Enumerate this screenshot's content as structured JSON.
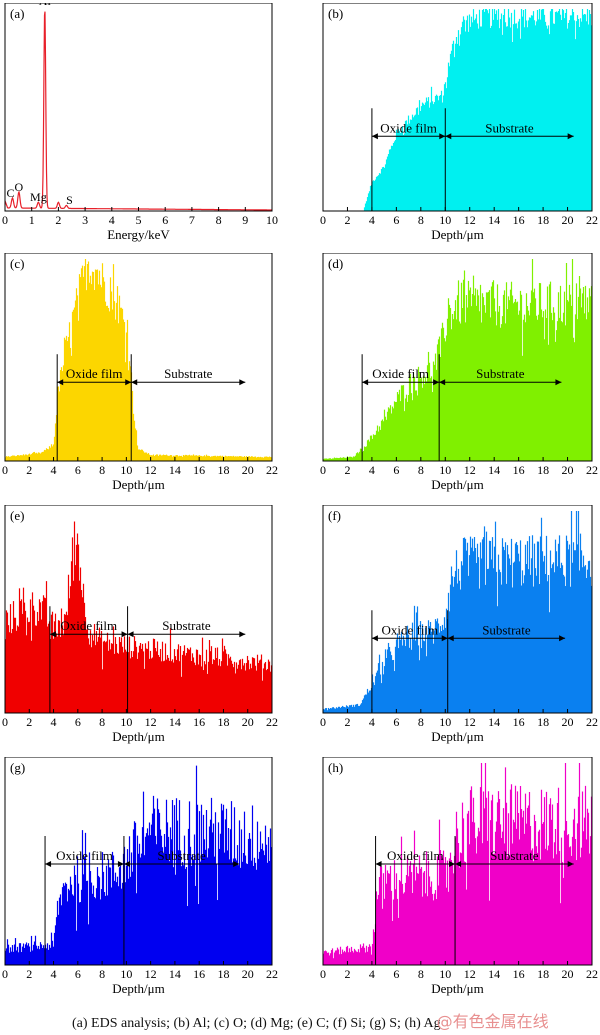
{
  "chart_data": [
    {
      "id": "a",
      "type": "line",
      "panel_label": "(a)",
      "xlabel": "Energy/keV",
      "xlim": [
        0,
        10
      ],
      "xticks": [
        0,
        1,
        2,
        3,
        4,
        5,
        6,
        7,
        8,
        9,
        10
      ],
      "ylim": [
        0,
        100
      ],
      "color": "#e8202a",
      "peaks": [
        {
          "label": "C",
          "energy": 0.28,
          "intensity": 5
        },
        {
          "label": "O",
          "energy": 0.52,
          "intensity": 8
        },
        {
          "label": "Mg",
          "energy": 1.25,
          "intensity": 3
        },
        {
          "label": "Al",
          "energy": 1.49,
          "intensity": 100
        },
        {
          "label": "",
          "energy": 2.0,
          "intensity": 3
        },
        {
          "label": "S",
          "energy": 2.3,
          "intensity": 1.5
        }
      ],
      "background": [
        {
          "x": 0,
          "y": 5
        },
        {
          "x": 0.1,
          "y": 1.5
        },
        {
          "x": 10,
          "y": 0.5
        }
      ]
    },
    {
      "id": "b",
      "type": "bar",
      "panel_label": "(b)",
      "element": "Al",
      "xlabel": "Depth/μm",
      "xlim": [
        0,
        22
      ],
      "xticks": [
        0,
        2,
        4,
        6,
        8,
        10,
        12,
        14,
        16,
        18,
        20,
        22
      ],
      "ylim": [
        0,
        100
      ],
      "color": "#00f0f0",
      "noise": 0.06,
      "profile": [
        [
          0,
          0
        ],
        [
          3.3,
          0
        ],
        [
          3.6,
          6
        ],
        [
          4,
          14
        ],
        [
          5,
          22
        ],
        [
          6,
          38
        ],
        [
          7,
          45
        ],
        [
          8,
          52
        ],
        [
          9,
          55
        ],
        [
          9.8,
          57
        ],
        [
          10.3,
          72
        ],
        [
          10.8,
          85
        ],
        [
          11.5,
          93
        ],
        [
          13,
          96
        ],
        [
          22,
          96
        ]
      ],
      "oxide_film": [
        4,
        10
      ],
      "annotation_level": 37,
      "labels": {
        "oxide": "Oxide film",
        "substrate": "Substrate"
      },
      "substrate_end": 20.5
    },
    {
      "id": "c",
      "type": "bar",
      "panel_label": "(c)",
      "element": "O",
      "xlabel": "Depth/μm",
      "xlim": [
        0,
        22
      ],
      "xticks": [
        0,
        2,
        4,
        6,
        8,
        10,
        12,
        14,
        16,
        18,
        20,
        22
      ],
      "ylim": [
        0,
        100
      ],
      "color": "#fcd600",
      "noise": 0.12,
      "profile": [
        [
          0,
          2
        ],
        [
          3,
          4
        ],
        [
          4,
          8
        ],
        [
          4.4,
          35
        ],
        [
          5,
          55
        ],
        [
          6,
          80
        ],
        [
          6.8,
          98
        ],
        [
          7.5,
          95
        ],
        [
          8.5,
          85
        ],
        [
          9.5,
          75
        ],
        [
          10.2,
          60
        ],
        [
          10.6,
          25
        ],
        [
          11,
          6
        ],
        [
          12,
          3
        ],
        [
          22,
          2
        ]
      ],
      "oxide_film": [
        4.3,
        10.4
      ],
      "annotation_level": 39,
      "labels": {
        "oxide": "Oxide film",
        "substrate": "Substrate"
      },
      "substrate_end": 19.8
    },
    {
      "id": "d",
      "type": "bar",
      "panel_label": "(d)",
      "element": "Mg",
      "xlabel": "Depth/μm",
      "xlim": [
        0,
        22
      ],
      "xticks": [
        0,
        2,
        4,
        6,
        8,
        10,
        12,
        14,
        16,
        18,
        20,
        22
      ],
      "ylim": [
        0,
        100
      ],
      "color": "#80f000",
      "noise": 0.15,
      "profile": [
        [
          0,
          1
        ],
        [
          2.5,
          2
        ],
        [
          3.5,
          8
        ],
        [
          5,
          20
        ],
        [
          6,
          30
        ],
        [
          7,
          38
        ],
        [
          8,
          42
        ],
        [
          9,
          45
        ],
        [
          9.6,
          55
        ],
        [
          10.2,
          72
        ],
        [
          11,
          78
        ],
        [
          13,
          77
        ],
        [
          22,
          78
        ]
      ],
      "oxide_film": [
        3.2,
        9.5
      ],
      "annotation_level": 39,
      "labels": {
        "oxide": "Oxide film",
        "substrate": "Substrate"
      },
      "substrate_end": 19.5
    },
    {
      "id": "e",
      "type": "bar",
      "panel_label": "(e)",
      "element": "C",
      "xlabel": "Depth/μm",
      "xlim": [
        0,
        22
      ],
      "xticks": [
        0,
        2,
        4,
        6,
        8,
        10,
        12,
        14,
        16,
        18,
        20,
        22
      ],
      "ylim": [
        0,
        100
      ],
      "color": "#f00000",
      "noise": 0.18,
      "profile": [
        [
          0,
          45
        ],
        [
          2,
          52
        ],
        [
          3,
          52
        ],
        [
          4,
          42
        ],
        [
          5,
          45
        ],
        [
          5.5,
          75
        ],
        [
          6,
          86
        ],
        [
          6.5,
          55
        ],
        [
          7,
          40
        ],
        [
          8,
          35
        ],
        [
          10,
          33
        ],
        [
          14,
          30
        ],
        [
          22,
          24
        ]
      ],
      "oxide_film": [
        3.7,
        10.1
      ],
      "annotation_level": 39,
      "labels": {
        "oxide": "Oxide film",
        "substrate": "Substrate"
      },
      "substrate_end": 19.8
    },
    {
      "id": "f",
      "type": "bar",
      "panel_label": "(f)",
      "element": "Si",
      "xlabel": "Depth/μm",
      "xlim": [
        0,
        22
      ],
      "xticks": [
        0,
        2,
        4,
        6,
        8,
        10,
        12,
        14,
        16,
        18,
        20,
        22
      ],
      "ylim": [
        0,
        100
      ],
      "color": "#0a80f0",
      "noise": 0.18,
      "profile": [
        [
          0,
          2
        ],
        [
          3,
          4
        ],
        [
          4,
          14
        ],
        [
          5,
          25
        ],
        [
          6,
          32
        ],
        [
          7,
          38
        ],
        [
          9,
          40
        ],
        [
          10,
          48
        ],
        [
          10.6,
          68
        ],
        [
          11.5,
          74
        ],
        [
          22,
          76
        ]
      ],
      "oxide_film": [
        4,
        10.2
      ],
      "annotation_level": 37,
      "labels": {
        "oxide": "Oxide film",
        "substrate": "Substrate"
      },
      "substrate_end": 19.8
    },
    {
      "id": "g",
      "type": "bar",
      "panel_label": "(g)",
      "element": "S",
      "xlabel": "Depth/μm",
      "xlim": [
        0,
        22
      ],
      "xticks": [
        0,
        2,
        4,
        6,
        8,
        10,
        12,
        14,
        16,
        18,
        20,
        22
      ],
      "ylim": [
        0,
        100
      ],
      "color": "#0000f0",
      "noise": 0.28,
      "profile": [
        [
          0,
          8
        ],
        [
          4,
          10
        ],
        [
          4.6,
          35
        ],
        [
          5.5,
          42
        ],
        [
          9,
          45
        ],
        [
          10.5,
          55
        ],
        [
          12,
          66
        ],
        [
          16,
          66
        ],
        [
          22,
          62
        ]
      ],
      "oxide_film": [
        3.3,
        9.8
      ],
      "annotation_level": 50,
      "labels": {
        "oxide": "Oxide film",
        "substrate": "Substrate"
      },
      "substrate_end": 19.3
    },
    {
      "id": "h",
      "type": "bar",
      "panel_label": "(h)",
      "element": "Ag",
      "xlabel": "Depth/μm",
      "xlim": [
        0,
        22
      ],
      "xticks": [
        0,
        2,
        4,
        6,
        8,
        10,
        12,
        14,
        16,
        18,
        20,
        22
      ],
      "ylim": [
        0,
        100
      ],
      "color": "#f000c8",
      "noise": 0.28,
      "profile": [
        [
          0,
          6
        ],
        [
          4,
          9
        ],
        [
          4.5,
          38
        ],
        [
          5.5,
          42
        ],
        [
          10,
          45
        ],
        [
          10.8,
          62
        ],
        [
          12,
          70
        ],
        [
          22,
          70
        ]
      ],
      "oxide_film": [
        4.3,
        10.8
      ],
      "annotation_level": 50,
      "labels": {
        "oxide": "Oxide film",
        "substrate": "Substrate"
      },
      "substrate_end": 20.5
    }
  ],
  "caption": "(a) EDS analysis; (b) Al; (c) O; (d) Mg; (e) C; (f) Si;  (g) S; (h) Ag",
  "watermark": "@有色金属在线"
}
